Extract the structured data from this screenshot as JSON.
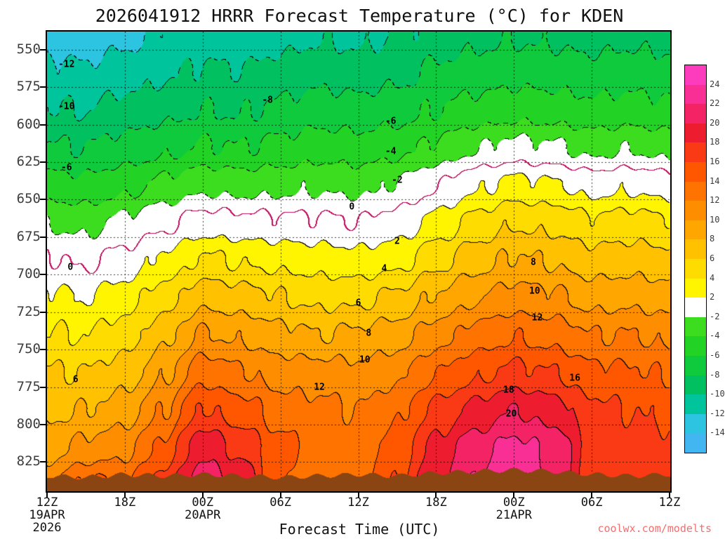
{
  "title": "2026041912 HRRR Forecast Temperature (°C) for KDEN",
  "watermark": "coolwx.com/modelts",
  "xaxis": {
    "label": "Forecast Time (UTC)",
    "ticks": [
      "12Z",
      "18Z",
      "00Z",
      "06Z",
      "12Z",
      "18Z",
      "00Z",
      "06Z",
      "12Z"
    ],
    "tick_hours": [
      0,
      6,
      12,
      18,
      24,
      30,
      36,
      42,
      48
    ],
    "dates": [
      {
        "text": "19APR",
        "hour": 0,
        "row": 1
      },
      {
        "text": "2026",
        "hour": 0,
        "row": 2
      },
      {
        "text": "20APR",
        "hour": 12,
        "row": 1
      },
      {
        "text": "21APR",
        "hour": 36,
        "row": 1
      }
    ]
  },
  "yaxis": {
    "ticks": [
      550,
      575,
      600,
      625,
      650,
      675,
      700,
      725,
      750,
      775,
      800,
      825
    ]
  },
  "chart_data": {
    "type": "heatmap",
    "title": "2026041912 HRRR Forecast Temperature (°C) for KDEN",
    "xlabel": "Forecast Time (UTC)",
    "x_hours": [
      0,
      3,
      6,
      9,
      12,
      15,
      18,
      21,
      24,
      27,
      30,
      33,
      36,
      39,
      42,
      45,
      48
    ],
    "pressure_levels": [
      540,
      565,
      590,
      615,
      640,
      665,
      690,
      715,
      740,
      765,
      790,
      815,
      840
    ],
    "pressure_range": [
      538,
      844
    ],
    "temps": [
      [
        -13.0,
        -13.2,
        -12.5,
        -11.8,
        -11.2,
        -11.4,
        -10.8,
        -10.2,
        -10.5,
        -10.0,
        -9.2,
        -8.6,
        -8.2,
        -8.4,
        -8.8,
        -8.5,
        -8.8
      ],
      [
        -11.5,
        -11.7,
        -11.0,
        -10.3,
        -9.7,
        -9.9,
        -9.3,
        -8.7,
        -9.0,
        -8.5,
        -7.7,
        -7.1,
        -6.7,
        -6.9,
        -7.3,
        -7.0,
        -7.3
      ],
      [
        -9.9,
        -10.0,
        -9.3,
        -8.6,
        -8.0,
        -8.2,
        -7.6,
        -7.0,
        -7.3,
        -6.8,
        -6.0,
        -5.3,
        -4.8,
        -5.0,
        -5.5,
        -5.2,
        -5.6
      ],
      [
        -7.9,
        -8.0,
        -7.3,
        -6.5,
        -5.8,
        -6.0,
        -5.5,
        -5.0,
        -5.2,
        -4.6,
        -3.6,
        -2.2,
        -1.4,
        -1.8,
        -2.6,
        -2.2,
        -2.8
      ],
      [
        -5.2,
        -5.5,
        -4.6,
        -3.6,
        -2.5,
        -2.8,
        -2.6,
        -2.3,
        -2.6,
        -1.8,
        -0.2,
        1.6,
        2.6,
        2.2,
        1.2,
        1.6,
        1.0
      ],
      [
        -2.2,
        -2.6,
        -1.6,
        -0.4,
        0.8,
        0.5,
        0.4,
        0.3,
        0.0,
        0.8,
        2.6,
        4.5,
        5.8,
        5.4,
        4.4,
        4.8,
        4.2
      ],
      [
        0.2,
        -0.3,
        0.6,
        2.4,
        4.3,
        3.8,
        3.4,
        3.0,
        2.6,
        3.4,
        5.4,
        7.2,
        8.2,
        7.8,
        6.8,
        7.0,
        6.6
      ],
      [
        2.4,
        2.0,
        3.0,
        5.0,
        7.3,
        6.8,
        6.0,
        5.5,
        5.6,
        6.3,
        8.2,
        9.8,
        10.8,
        10.4,
        9.2,
        9.4,
        9.0
      ],
      [
        4.2,
        4.0,
        5.0,
        7.4,
        10.2,
        9.6,
        8.6,
        8.0,
        8.3,
        9.0,
        11.0,
        12.8,
        13.8,
        13.2,
        12.0,
        12.0,
        11.5
      ],
      [
        6.1,
        6.0,
        7.0,
        9.6,
        13.2,
        12.2,
        11.0,
        10.8,
        10.5,
        11.5,
        13.8,
        15.5,
        16.5,
        16.0,
        14.5,
        14.2,
        13.8
      ],
      [
        7.6,
        8.0,
        9.0,
        12.0,
        16.2,
        14.8,
        13.0,
        12.5,
        12.0,
        13.5,
        16.5,
        18.5,
        20.0,
        19.0,
        16.5,
        16.0,
        15.5
      ],
      [
        9.2,
        10.5,
        11.5,
        14.5,
        19.5,
        17.5,
        14.5,
        13.5,
        13.0,
        15.0,
        18.5,
        21.0,
        22.5,
        21.5,
        17.5,
        17.0,
        16.5
      ],
      [
        11.5,
        14.5,
        14.0,
        17.0,
        21.3,
        19.5,
        14.0,
        13.0,
        13.5,
        16.0,
        19.5,
        22.5,
        23.6,
        22.0,
        17.0,
        17.5,
        17.0
      ]
    ],
    "terrain_pressure": [
      834,
      835,
      833,
      834,
      833,
      834,
      835,
      834,
      833,
      834,
      832,
      831,
      830,
      831,
      833,
      834,
      833
    ],
    "terrain_color": "#8b4513",
    "contour_interval": 2,
    "zero_line_color": "#c01060",
    "color_thresholds": [
      -14,
      -12,
      -10,
      -8,
      -6,
      -4,
      -2,
      2,
      4,
      6,
      8,
      10,
      12,
      14,
      16,
      18,
      20,
      22,
      24
    ],
    "colors": [
      "#41b6f0",
      "#2cc4e0",
      "#00c49c",
      "#00c060",
      "#0fca3c",
      "#22d325",
      "#3cdd1e",
      "#ffffff",
      "#fff500",
      "#ffdc00",
      "#ffc100",
      "#ffa600",
      "#ff8d00",
      "#ff7300",
      "#ff5600",
      "#fa3a14",
      "#ee1c2f",
      "#f42365",
      "#fa2f95",
      "#fd3bbd"
    ],
    "colorbar_labels": [
      24,
      22,
      20,
      18,
      16,
      14,
      12,
      10,
      8,
      6,
      4,
      2,
      -2,
      -4,
      -6,
      -8,
      -10,
      -12,
      -14
    ],
    "contour_labels": [
      {
        "level": -12,
        "hour": 1.5,
        "pressure": 560
      },
      {
        "level": -10,
        "hour": 1.5,
        "pressure": 588
      },
      {
        "level": -6,
        "hour": 1.5,
        "pressure": 629
      },
      {
        "level": 0,
        "hour": 1.8,
        "pressure": 695
      },
      {
        "level": 6,
        "hour": 2.2,
        "pressure": 770
      },
      {
        "level": -8,
        "hour": 17,
        "pressure": 584
      },
      {
        "level": -6,
        "hour": 26.5,
        "pressure": 598
      },
      {
        "level": -4,
        "hour": 26.5,
        "pressure": 618
      },
      {
        "level": -2,
        "hour": 27,
        "pressure": 637
      },
      {
        "level": 0,
        "hour": 23.5,
        "pressure": 655
      },
      {
        "level": 2,
        "hour": 27,
        "pressure": 678
      },
      {
        "level": 4,
        "hour": 26,
        "pressure": 696
      },
      {
        "level": 6,
        "hour": 24,
        "pressure": 719
      },
      {
        "level": 8,
        "hour": 24.8,
        "pressure": 739
      },
      {
        "level": 10,
        "hour": 24.5,
        "pressure": 757
      },
      {
        "level": 12,
        "hour": 21,
        "pressure": 775
      },
      {
        "level": 8,
        "hour": 37.5,
        "pressure": 692
      },
      {
        "level": 10,
        "hour": 37.6,
        "pressure": 711
      },
      {
        "level": 12,
        "hour": 37.8,
        "pressure": 729
      },
      {
        "level": 16,
        "hour": 40.7,
        "pressure": 769
      },
      {
        "level": 18,
        "hour": 35.6,
        "pressure": 777
      },
      {
        "level": 20,
        "hour": 35.8,
        "pressure": 793
      }
    ]
  }
}
